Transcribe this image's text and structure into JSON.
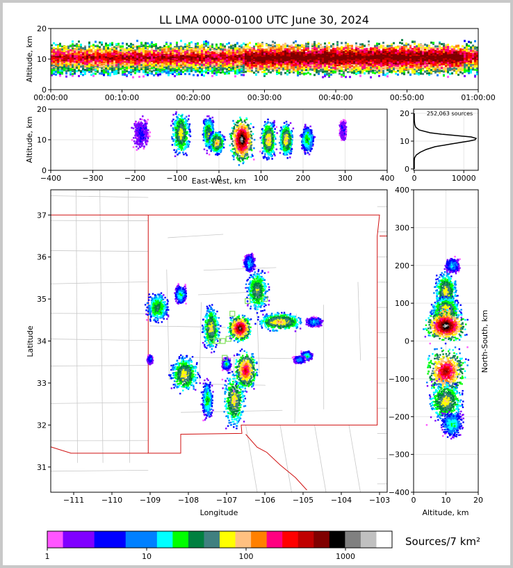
{
  "title": "LL LMA 0000-0100 UTC June 30, 2024",
  "colorbar": {
    "label": "Sources/7 km²",
    "ticks": [
      "1",
      "10",
      "100",
      "1000"
    ],
    "colors": [
      "#ff55ff",
      "#8000ff",
      "#0000ff",
      "#0080ff",
      "#00ffff",
      "#00ff00",
      "#008040",
      "#408080",
      "#ffff00",
      "#ffc080",
      "#ff8000",
      "#ff0080",
      "#ff0000",
      "#c00000",
      "#800000",
      "#000000",
      "#808080",
      "#c0c0c0",
      "#ffffff"
    ]
  },
  "chart_data": [
    {
      "panel": "time-height",
      "type": "heatmap",
      "xlabel": "",
      "ylabel": "Altitude, km",
      "xlim": [
        "00:00:00",
        "01:00:00"
      ],
      "ylim": [
        0,
        20
      ],
      "x_ticks": [
        "00:00:00",
        "00:10:00",
        "00:20:00",
        "00:30:00",
        "00:40:00",
        "00:50:00",
        "01:00:00"
      ],
      "y_ticks": [
        "0",
        "10",
        "20"
      ],
      "core_altitude_km": [
        7,
        13
      ],
      "densest_window": [
        "00:27:00",
        "00:58:00"
      ]
    },
    {
      "panel": "east-west-altitude",
      "type": "heatmap",
      "xlabel": "East-West, km",
      "ylabel": "Altitude, km",
      "xlim": [
        -400,
        400
      ],
      "ylim": [
        0,
        20
      ],
      "x_ticks": [
        "−400",
        "−300",
        "−200",
        "−100",
        "0",
        "100",
        "200",
        "300",
        "400"
      ],
      "y_ticks": [
        "0",
        "10",
        "20"
      ],
      "cells": [
        {
          "x": -185,
          "z": 12,
          "w": 20,
          "h": 6,
          "level": 2
        },
        {
          "x": -90,
          "z": 12,
          "w": 22,
          "h": 8,
          "level": 9
        },
        {
          "x": -25,
          "z": 12,
          "w": 14,
          "h": 6,
          "level": 8
        },
        {
          "x": -5,
          "z": 9,
          "w": 18,
          "h": 4,
          "level": 10
        },
        {
          "x": 55,
          "z": 10,
          "w": 28,
          "h": 8,
          "level": 17
        },
        {
          "x": 118,
          "z": 10,
          "w": 18,
          "h": 7,
          "level": 10
        },
        {
          "x": 160,
          "z": 10,
          "w": 16,
          "h": 6,
          "level": 10
        },
        {
          "x": 210,
          "z": 10,
          "w": 16,
          "h": 5,
          "level": 6
        },
        {
          "x": 295,
          "z": 13,
          "w": 8,
          "h": 4,
          "level": 2
        }
      ]
    },
    {
      "panel": "altitude-histogram",
      "type": "line",
      "annotation": "252,063 sources",
      "xlim": [
        0,
        12500
      ],
      "ylim": [
        0,
        20
      ],
      "x_ticks": [
        "0",
        "10000"
      ],
      "y_ticks": [
        "0",
        "10",
        "20"
      ],
      "altitude_km": [
        0,
        2,
        3,
        4,
        5,
        6,
        7,
        8,
        9,
        10,
        10.5,
        11,
        11.5,
        12,
        12.5,
        13,
        14,
        15,
        16,
        17,
        18,
        20
      ],
      "sources": [
        0,
        0,
        0,
        50,
        400,
        1200,
        2400,
        4200,
        7500,
        11000,
        12300,
        12500,
        11500,
        8500,
        5500,
        3200,
        1000,
        300,
        100,
        30,
        0,
        0
      ]
    },
    {
      "panel": "plan-view",
      "type": "heatmap",
      "xlabel": "Longitude",
      "ylabel": "Latitude",
      "xlim": [
        -111.6,
        -102.8
      ],
      "ylim": [
        30.4,
        37.6
      ],
      "x_ticks": [
        "−111",
        "−110",
        "−109",
        "−108",
        "−107",
        "−106",
        "−105",
        "−104",
        "−103"
      ],
      "y_ticks": [
        "31",
        "32",
        "33",
        "34",
        "35",
        "36",
        "37"
      ],
      "cells": [
        {
          "lon": -108.8,
          "lat": 34.8,
          "w": 0.4,
          "h": 0.5,
          "level": 7
        },
        {
          "lon": -108.1,
          "lat": 33.2,
          "w": 0.5,
          "h": 0.6,
          "level": 9
        },
        {
          "lon": -107.4,
          "lat": 34.3,
          "w": 0.3,
          "h": 0.7,
          "level": 9
        },
        {
          "lon": -107.5,
          "lat": 32.6,
          "w": 0.2,
          "h": 0.6,
          "level": 6
        },
        {
          "lon": -106.8,
          "lat": 32.6,
          "w": 0.4,
          "h": 0.9,
          "level": 9
        },
        {
          "lon": -106.5,
          "lat": 33.3,
          "w": 0.4,
          "h": 0.6,
          "level": 13
        },
        {
          "lon": -106.65,
          "lat": 34.3,
          "w": 0.4,
          "h": 0.4,
          "level": 16
        },
        {
          "lon": -106.2,
          "lat": 35.2,
          "w": 0.4,
          "h": 0.7,
          "level": 8
        },
        {
          "lon": -106.4,
          "lat": 35.85,
          "w": 0.2,
          "h": 0.3,
          "level": 4
        },
        {
          "lon": -105.6,
          "lat": 34.45,
          "w": 0.8,
          "h": 0.3,
          "level": 10
        },
        {
          "lon": -104.7,
          "lat": 34.45,
          "w": 0.3,
          "h": 0.15,
          "level": 4
        },
        {
          "lon": -104.9,
          "lat": 33.65,
          "w": 0.2,
          "h": 0.15,
          "level": 5
        },
        {
          "lon": -105.1,
          "lat": 33.55,
          "w": 0.2,
          "h": 0.12,
          "level": 4
        },
        {
          "lon": -108.2,
          "lat": 35.1,
          "w": 0.2,
          "h": 0.3,
          "level": 5
        },
        {
          "lon": -107.0,
          "lat": 33.45,
          "w": 0.15,
          "h": 0.2,
          "level": 5
        },
        {
          "lon": -109.0,
          "lat": 33.55,
          "w": 0.1,
          "h": 0.15,
          "level": 3
        }
      ],
      "stations": [
        {
          "lon": -107.4,
          "lat": 34.0
        },
        {
          "lon": -107.25,
          "lat": 34.0
        },
        {
          "lon": -107.1,
          "lat": 34.0
        },
        {
          "lon": -106.95,
          "lat": 34.05
        },
        {
          "lon": -107.05,
          "lat": 33.6
        },
        {
          "lon": -106.85,
          "lat": 34.65
        },
        {
          "lon": -106.45,
          "lat": 34.95
        },
        {
          "lon": -106.0,
          "lat": 35.0
        }
      ]
    },
    {
      "panel": "altitude-north-south",
      "type": "heatmap",
      "xlabel": "Altitude, km",
      "ylabel": "North-South, km",
      "xlim": [
        0,
        20
      ],
      "ylim": [
        -400,
        400
      ],
      "x_ticks": [
        "0",
        "10",
        "20"
      ],
      "y_ticks": [
        "−400",
        "−300",
        "−200",
        "−100",
        "0",
        "100",
        "200",
        "300",
        "400"
      ],
      "cells": [
        {
          "z": 12,
          "y": 200,
          "w": 5,
          "h": 22,
          "level": 4
        },
        {
          "z": 10,
          "y": 130,
          "w": 8,
          "h": 60,
          "level": 9
        },
        {
          "z": 10,
          "y": 80,
          "w": 10,
          "h": 40,
          "level": 10
        },
        {
          "z": 10,
          "y": 40,
          "w": 14,
          "h": 45,
          "level": 17
        },
        {
          "z": 10,
          "y": -80,
          "w": 14,
          "h": 70,
          "level": 14
        },
        {
          "z": 10,
          "y": -160,
          "w": 12,
          "h": 60,
          "level": 9
        },
        {
          "z": 12,
          "y": -220,
          "w": 8,
          "h": 40,
          "level": 5
        }
      ]
    }
  ]
}
